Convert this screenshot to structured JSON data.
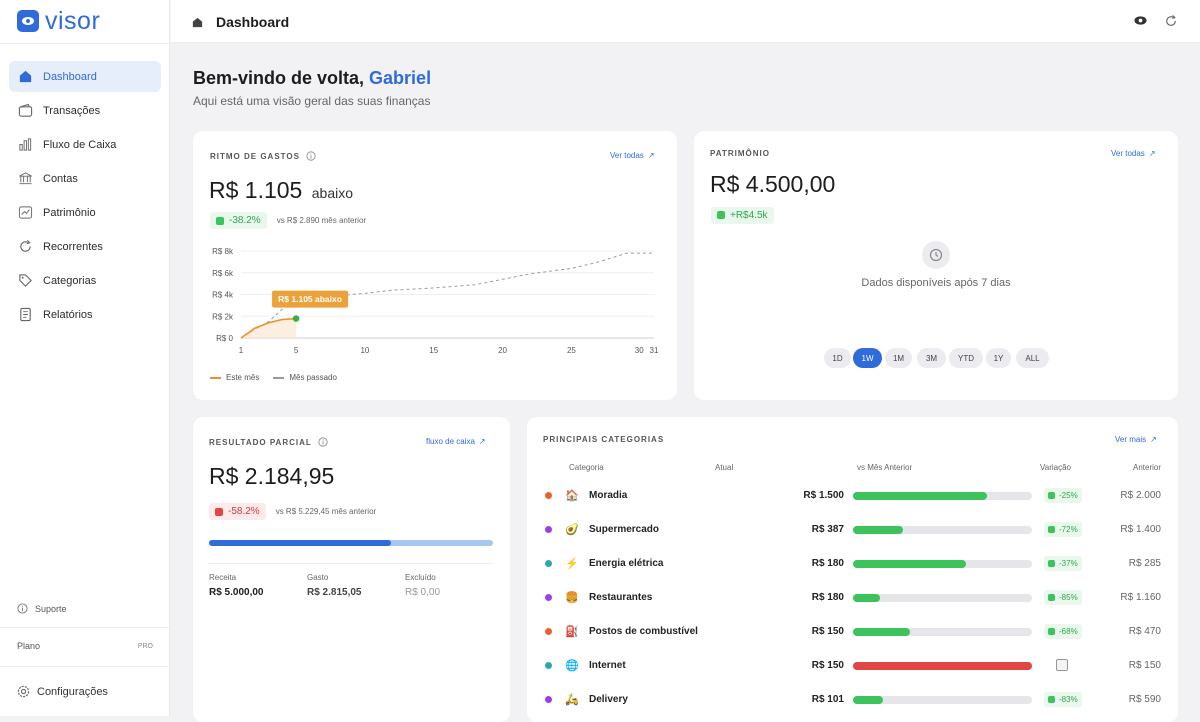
{
  "app": {
    "logo_text": "visor"
  },
  "sidebar": {
    "items": [
      {
        "label": "Dashboard",
        "icon": "dashboard-icon",
        "active": true
      },
      {
        "label": "Transações",
        "icon": "wallet-icon"
      },
      {
        "label": "Fluxo de Caixa",
        "icon": "bar-chart-icon"
      },
      {
        "label": "Contas",
        "icon": "bank-icon"
      },
      {
        "label": "Patrimônio",
        "icon": "trend-icon"
      },
      {
        "label": "Recorrentes",
        "icon": "refresh-icon"
      },
      {
        "label": "Categorias",
        "icon": "tag-icon"
      },
      {
        "label": "Relatórios",
        "icon": "report-icon"
      }
    ],
    "support_label": "Suporte",
    "plan_label": "Plano",
    "plan_value": "PRO",
    "settings_label": "Configurações"
  },
  "header": {
    "title": "Dashboard"
  },
  "welcome": {
    "prefix": "Bem-vindo de volta,",
    "name": "Gabriel",
    "subtitle": "Aqui está uma visão geral das suas finanças"
  },
  "spending": {
    "title": "RITMO DE GASTOS",
    "link": "Ver todas",
    "amount": "R$ 1.105",
    "amount_suffix": "abaixo",
    "change": "-38.2%",
    "compare": "vs R$ 2.890 mês anterior",
    "tooltip": "R$ 1.105 abaixo",
    "legend_this": "Este mês",
    "legend_last": "Mês passado"
  },
  "chart_data": {
    "type": "line",
    "y_ticks": [
      "R$ 8k",
      "R$ 6k",
      "R$ 4k",
      "R$ 2k",
      "R$ 0"
    ],
    "x_ticks": [
      "1",
      "5",
      "10",
      "15",
      "20",
      "25",
      "30",
      "31"
    ],
    "xlim": [
      1,
      31
    ],
    "ylim": [
      0,
      8000
    ],
    "series": [
      {
        "name": "Este mês",
        "color": "#e8912e",
        "x": [
          1,
          2,
          3,
          4,
          5
        ],
        "y": [
          0,
          900,
          1400,
          1700,
          1785
        ]
      },
      {
        "name": "Mês passado",
        "color": "#999999",
        "x": [
          1,
          3,
          5,
          8,
          10,
          12,
          15,
          18,
          20,
          22,
          25,
          27,
          29,
          31
        ],
        "y": [
          0,
          1500,
          3800,
          3900,
          4100,
          4400,
          4600,
          4900,
          5400,
          5900,
          6400,
          7000,
          7800,
          7800
        ]
      }
    ]
  },
  "networth": {
    "title": "PATRIMÔNIO",
    "link": "Ver todas",
    "amount": "R$ 4.500,00",
    "change": "+R$4.5k",
    "empty_message": "Dados disponíveis após 7 dias",
    "ranges": [
      "1D",
      "1W",
      "1M",
      "3M",
      "YTD",
      "1Y",
      "ALL"
    ],
    "active_range": "1W"
  },
  "partial": {
    "title": "RESULTADO PARCIAL",
    "link": "fluxo de caixa",
    "amount": "R$ 2.184,95",
    "change": "-58.2%",
    "compare": "vs R$ 5.229,45 mês anterior",
    "progress_fraction": 0.64,
    "income_label": "Receita",
    "income_value": "R$ 5.000,00",
    "spent_label": "Gasto",
    "spent_value": "R$ 2.815,05",
    "excluded_label": "Excluído",
    "excluded_value": "R$ 0,00"
  },
  "categories": {
    "title": "PRINCIPAIS CATEGORIAS",
    "link": "Ver mais",
    "headers": {
      "category": "Categoria",
      "current": "Atual",
      "vs": "vs Mês Anterior",
      "variation": "Variação",
      "previous": "Anterior"
    },
    "rows": [
      {
        "dot": "#e8612e",
        "emoji": "🏠",
        "name": "Moradia",
        "current": "R$ 1.500",
        "fraction": 0.75,
        "bar_color": "#3cc35c",
        "variation": "-25%",
        "previous": "R$ 2.000"
      },
      {
        "dot": "#9b3fe8",
        "emoji": "🥑",
        "name": "Supermercado",
        "current": "R$ 387",
        "fraction": 0.28,
        "bar_color": "#3cc35c",
        "variation": "-72%",
        "previous": "R$ 1.400"
      },
      {
        "dot": "#2fa8a8",
        "emoji": "⚡",
        "name": "Energia elétrica",
        "current": "R$ 180",
        "fraction": 0.63,
        "bar_color": "#3cc35c",
        "variation": "-37%",
        "previous": "R$ 285"
      },
      {
        "dot": "#9b3fe8",
        "emoji": "🍔",
        "name": "Restaurantes",
        "current": "R$ 180",
        "fraction": 0.15,
        "bar_color": "#3cc35c",
        "variation": "-85%",
        "previous": "R$ 1.160"
      },
      {
        "dot": "#e8612e",
        "emoji": "⛽",
        "name": "Postos de combustível",
        "current": "R$ 150",
        "fraction": 0.32,
        "bar_color": "#3cc35c",
        "variation": "-68%",
        "previous": "R$ 470"
      },
      {
        "dot": "#2fa8a8",
        "emoji": "🌐",
        "name": "Internet",
        "current": "R$ 150",
        "fraction": 1.0,
        "bar_color": "#e04646",
        "variation": "",
        "previous": "R$ 150"
      },
      {
        "dot": "#9b3fe8",
        "emoji": "🛵",
        "name": "Delivery",
        "current": "R$ 101",
        "fraction": 0.17,
        "bar_color": "#3cc35c",
        "variation": "-83%",
        "previous": "R$ 590"
      }
    ]
  }
}
